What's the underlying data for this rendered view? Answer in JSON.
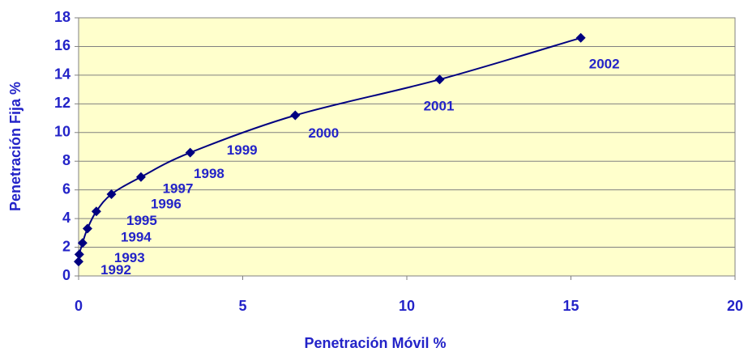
{
  "chart_data": {
    "type": "scatter",
    "x_label": "Penetración Móvil %",
    "y_label": "Penetración Fija %",
    "series": [
      {
        "color": "#000080",
        "x": [
          0,
          0.02,
          0.12,
          0.27,
          0.54,
          1.0,
          1.9,
          3.4,
          6.6,
          11.0,
          15.3
        ],
        "values": [
          1.0,
          1.5,
          2.3,
          3.3,
          4.5,
          5.7,
          6.9,
          8.6,
          11.2,
          13.7,
          16.6
        ],
        "point_labels": [
          "1992",
          "1993",
          "1994",
          "1995",
          "1996",
          "1997",
          "1998",
          "1999",
          "2000",
          "2001",
          "2002"
        ]
      }
    ],
    "xlim": [
      0,
      20
    ],
    "xticks": [
      0,
      5,
      10,
      15,
      20
    ],
    "ylim": [
      0,
      18
    ],
    "yticks": [
      0,
      2,
      4,
      6,
      8,
      10,
      12,
      14,
      16,
      18
    ],
    "grid": true,
    "smooth": true
  }
}
